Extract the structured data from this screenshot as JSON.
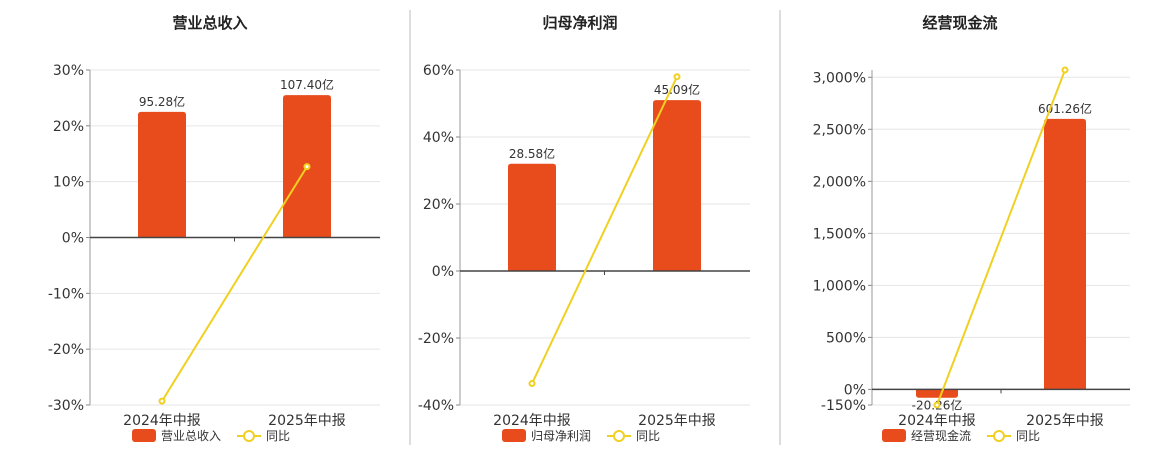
{
  "colors": {
    "bar": "#E84C1C",
    "line": "#F0D020",
    "axis": "#333333",
    "grid": "#E6E6E6",
    "divider": "#BBBBBB"
  },
  "legend_icons": {
    "bar": "orange-rect-icon",
    "line": "yellow-line-circle-icon"
  },
  "chart_data": [
    {
      "type": "bar",
      "title": "营业总收入",
      "categories": [
        "2024年中报",
        "2025年中报"
      ],
      "values": [
        22.5,
        25.5
      ],
      "bar_labels": [
        "95.28亿",
        "107.40亿"
      ],
      "line": {
        "name": "同比",
        "values": [
          -29.3,
          12.7
        ]
      },
      "bar_series_name": "营业总收入",
      "yticks": [
        "30%",
        "20%",
        "10%",
        "0%",
        "-10%",
        "-20%",
        "-30%"
      ],
      "ylim": [
        -30,
        30
      ],
      "grid": true,
      "legend_position": "bottom"
    },
    {
      "type": "bar",
      "title": "归母净利润",
      "categories": [
        "2024年中报",
        "2025年中报"
      ],
      "values": [
        32,
        51
      ],
      "bar_labels": [
        "28.58亿",
        "45.09亿"
      ],
      "line": {
        "name": "同比",
        "values": [
          -33.6,
          58
        ]
      },
      "bar_series_name": "归母净利润",
      "yticks": [
        "60%",
        "40%",
        "20%",
        "0%",
        "-20%",
        "-40%"
      ],
      "ylim": [
        -40,
        60
      ],
      "grid": true,
      "legend_position": "bottom"
    },
    {
      "type": "bar",
      "title": "经营现金流",
      "categories": [
        "2024年中报",
        "2025年中报"
      ],
      "values": [
        -80,
        2600
      ],
      "bar_labels": [
        "-20.26亿",
        "601.26亿"
      ],
      "line": {
        "name": "同比",
        "values": [
          -150,
          3070
        ]
      },
      "bar_series_name": "经营现金流",
      "yticks": [
        "3,000%",
        "2,500%",
        "2,000%",
        "1,500%",
        "1,000%",
        "500%",
        "0%",
        "-150%"
      ],
      "ylim": [
        -150,
        3070
      ],
      "grid": true,
      "legend_position": "bottom"
    }
  ]
}
